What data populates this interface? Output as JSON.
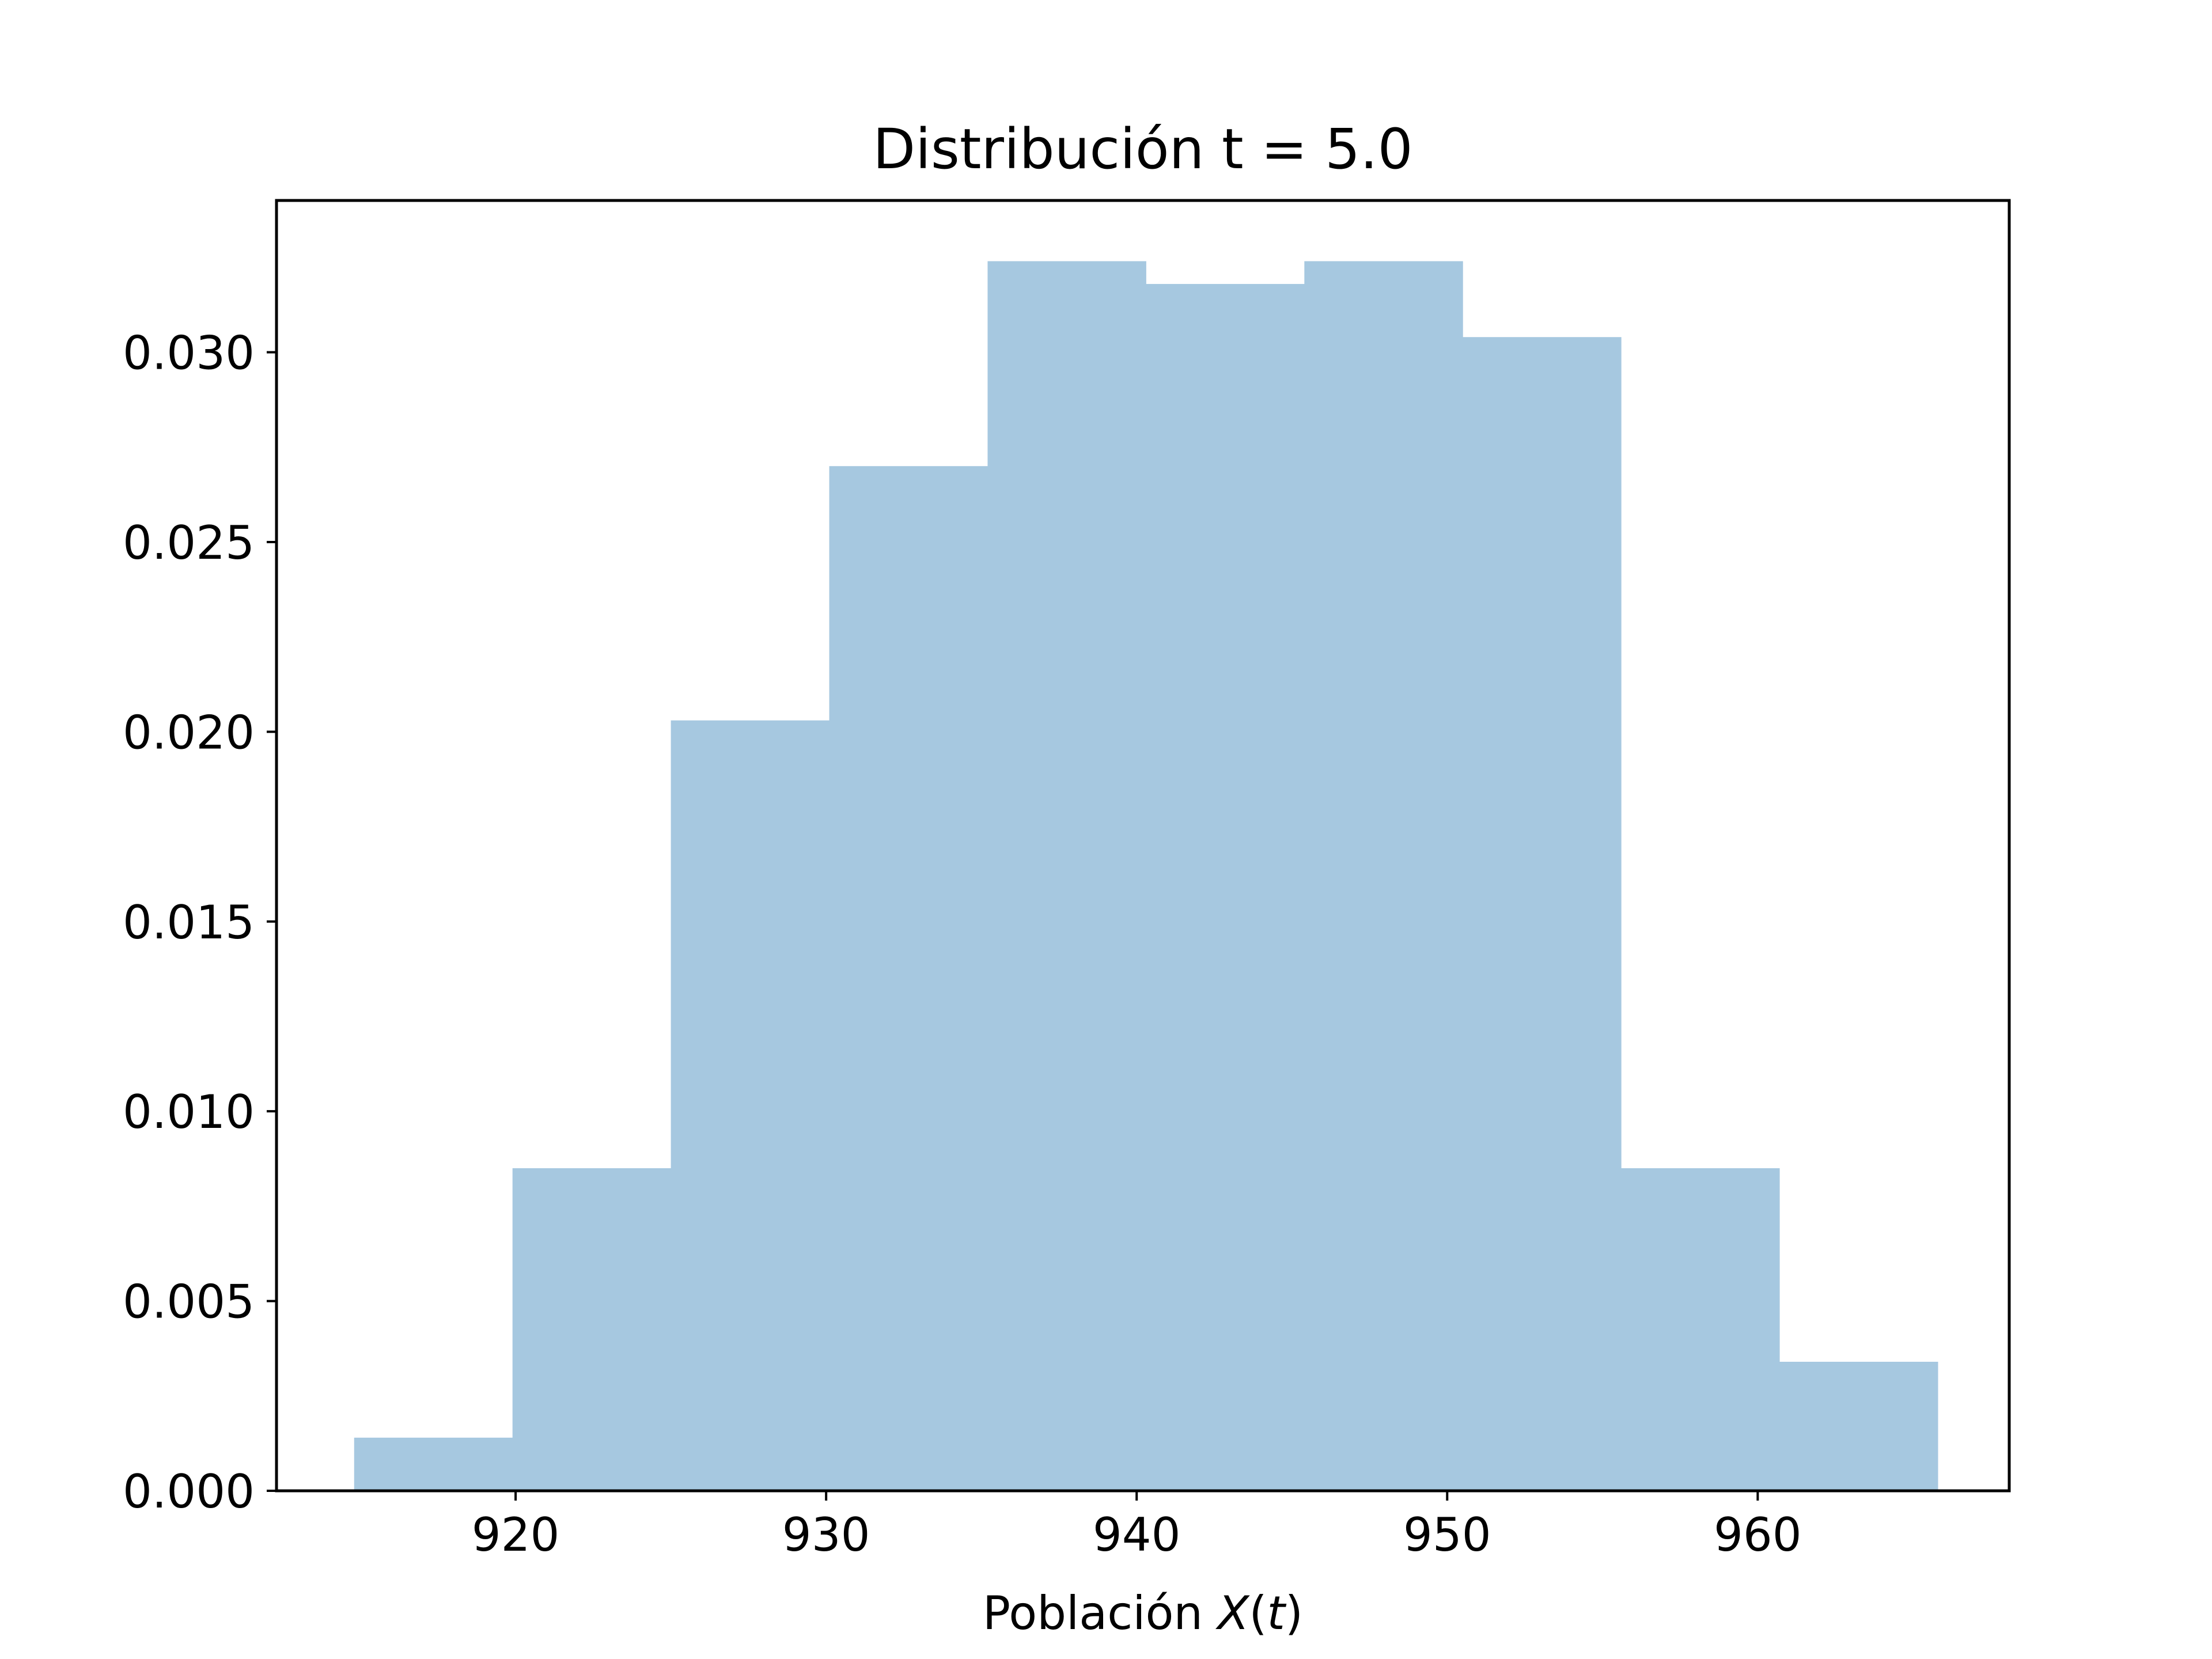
{
  "chart_data": {
    "type": "bar",
    "title": "Distribución t = 5.0",
    "xlabel": {
      "prefix": "Población ",
      "math": "X",
      "open": "(",
      "var": "t",
      "close": ")"
    },
    "ylabel": "",
    "xlim": [
      912.3,
      968.1
    ],
    "ylim": [
      0,
      0.034
    ],
    "xticks": [
      920,
      930,
      940,
      950,
      960
    ],
    "xtick_labels": [
      "920",
      "930",
      "940",
      "950",
      "960"
    ],
    "yticks": [
      0.0,
      0.005,
      0.01,
      0.015,
      0.02,
      0.025,
      0.03
    ],
    "ytick_labels": [
      "0.000",
      "0.005",
      "0.010",
      "0.015",
      "0.020",
      "0.025",
      "0.030"
    ],
    "grid": false,
    "bar_color": "#a6c8e0",
    "bins": [
      {
        "x0": 914.8,
        "x1": 919.9,
        "value": 0.0014
      },
      {
        "x0": 919.9,
        "x1": 925.0,
        "value": 0.0085
      },
      {
        "x0": 925.0,
        "x1": 930.1,
        "value": 0.0203
      },
      {
        "x0": 930.1,
        "x1": 935.2,
        "value": 0.027
      },
      {
        "x0": 935.2,
        "x1": 940.3,
        "value": 0.0324
      },
      {
        "x0": 940.3,
        "x1": 945.4,
        "value": 0.0318
      },
      {
        "x0": 945.4,
        "x1": 950.5,
        "value": 0.0324
      },
      {
        "x0": 950.5,
        "x1": 955.6,
        "value": 0.0304
      },
      {
        "x0": 955.6,
        "x1": 960.7,
        "value": 0.0085
      },
      {
        "x0": 960.7,
        "x1": 965.8,
        "value": 0.0034
      }
    ]
  }
}
